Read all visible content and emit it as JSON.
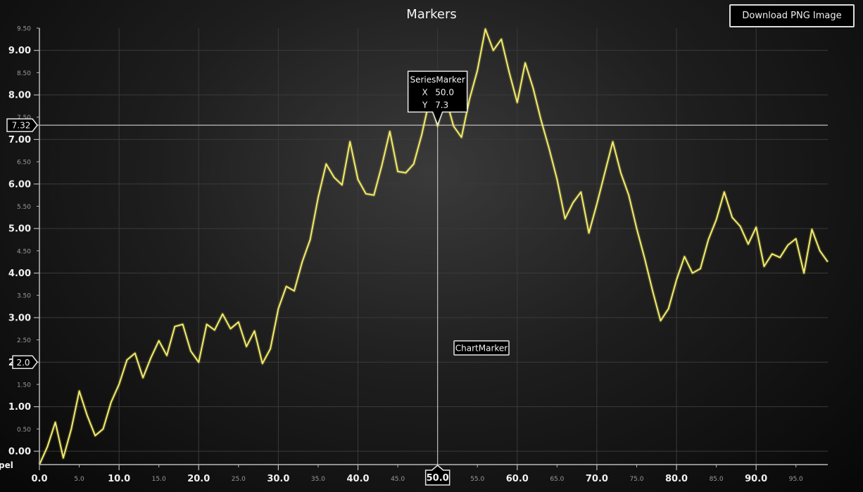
{
  "page": {
    "download_label": "Download PNG Image"
  },
  "colors": {
    "series": "#f4ec6a",
    "grid": "#3a3a3a",
    "axis": "#b9b9b9",
    "marker_line": "#bdbdbd",
    "background_center": "#3a3a3a",
    "background_edge": "#070707"
  },
  "chart_data": {
    "type": "line",
    "title": "Markers",
    "ylabel_visible_fragment": "pel",
    "xlim": [
      0,
      99
    ],
    "ylim": [
      -0.3,
      9.5
    ],
    "x_major_ticks": [
      "0.0",
      "10.0",
      "20.0",
      "30.0",
      "40.0",
      "50.0",
      "60.0",
      "70.0",
      "80.0",
      "90.0"
    ],
    "x_minor_ticks": [
      "5.0",
      "15.0",
      "25.0",
      "35.0",
      "45.0",
      "55.0",
      "65.0",
      "75.0",
      "85.0",
      "95.0"
    ],
    "y_major_ticks": [
      "0.00",
      "1.00",
      "2.00",
      "3.00",
      "4.00",
      "5.00",
      "6.00",
      "7.00",
      "8.00",
      "9.00"
    ],
    "y_minor_ticks": [
      "0.50",
      "1.50",
      "2.50",
      "3.50",
      "4.50",
      "5.50",
      "6.50",
      "7.50",
      "8.50",
      "9.50"
    ],
    "grid": true,
    "legend": "none",
    "series": [
      {
        "x": [
          0,
          1,
          2,
          3,
          4,
          5,
          6,
          7,
          8,
          9,
          10,
          11,
          12,
          13,
          14,
          15,
          16,
          17,
          18,
          19,
          20,
          21,
          22,
          23,
          24,
          25,
          26,
          27,
          28,
          29,
          30,
          31,
          32,
          33,
          34,
          35,
          36,
          37,
          38,
          39,
          40,
          41,
          42,
          43,
          44,
          45,
          46,
          47,
          48,
          49,
          50,
          51,
          52,
          53,
          54,
          55,
          56,
          57,
          58,
          59,
          60,
          61,
          62,
          63,
          64,
          65,
          66,
          67,
          68,
          69,
          70,
          71,
          72,
          73,
          74,
          75,
          76,
          77,
          78,
          79,
          80,
          81,
          82,
          83,
          84,
          85,
          86,
          87,
          88,
          89,
          90,
          91,
          92,
          93,
          94,
          95,
          96,
          97,
          98,
          99
        ],
        "values": [
          -0.3,
          0.1,
          0.65,
          -0.15,
          0.5,
          1.35,
          0.8,
          0.35,
          0.5,
          1.1,
          1.5,
          2.05,
          2.2,
          1.65,
          2.1,
          2.48,
          2.15,
          2.8,
          2.85,
          2.25,
          2.0,
          2.85,
          2.72,
          3.08,
          2.75,
          2.9,
          2.35,
          2.7,
          1.97,
          2.3,
          3.2,
          3.7,
          3.6,
          4.25,
          4.75,
          5.7,
          6.45,
          6.15,
          5.98,
          6.95,
          6.1,
          5.78,
          5.75,
          6.42,
          7.18,
          6.28,
          6.25,
          6.45,
          7.1,
          7.9,
          7.3,
          7.95,
          7.3,
          7.05,
          7.9,
          8.55,
          9.48,
          9.0,
          9.25,
          8.5,
          7.83,
          8.72,
          8.15,
          7.43,
          6.8,
          6.1,
          5.22,
          5.58,
          5.82,
          4.9,
          5.55,
          6.25,
          6.95,
          6.25,
          5.75,
          5.0,
          4.33,
          3.6,
          2.93,
          3.2,
          3.85,
          4.37,
          4.0,
          4.1,
          4.75,
          5.2,
          5.82,
          5.25,
          5.05,
          4.65,
          5.03,
          4.15,
          4.43,
          4.35,
          4.63,
          4.77,
          4.0,
          4.98,
          4.5,
          4.25
        ]
      }
    ],
    "series_marker": {
      "label": "SeriesMarker",
      "x_label": "X",
      "x_value": "50.0",
      "y_label": "Y",
      "y_value": "7.3",
      "x": 50.0,
      "y": 7.3
    },
    "chart_marker": {
      "label": "ChartMarker",
      "x_tick": "50.0",
      "y_tick": "2.0",
      "x": 50.0,
      "y": 2.0
    },
    "crosshair": {
      "y_value_label": "7.32",
      "y": 7.32
    }
  }
}
